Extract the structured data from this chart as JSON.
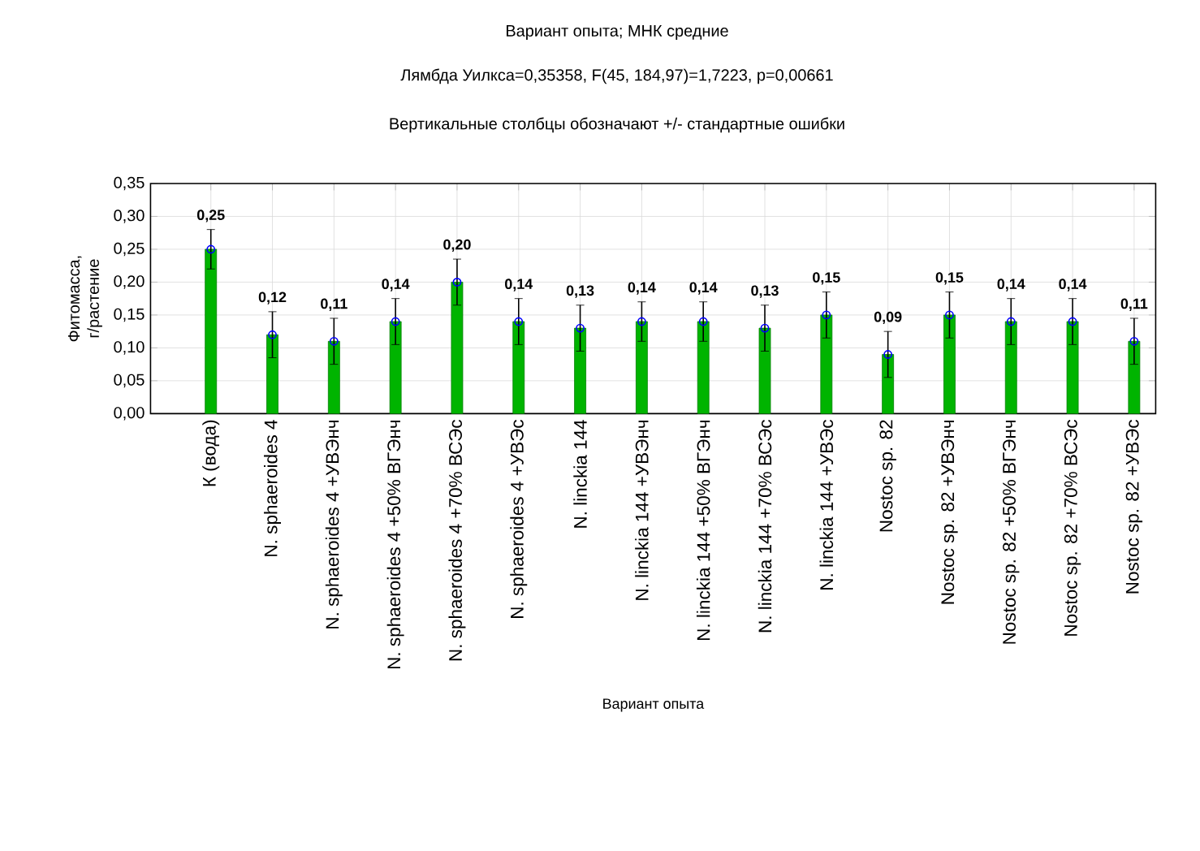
{
  "chart_data": {
    "type": "bar",
    "title": "Вариант опыта; МНК средние",
    "subtitle": "Лямбда Уилкса=0,35358, F(45, 184,97)=1,7223, p=0,00661",
    "annotations": [
      "Вертикальные столбцы обозначают +/- стандартные ошибки"
    ],
    "xlabel": "Вариант опыта",
    "ylabel": "Фитомасса, г/растение",
    "categories": [
      "К (вода)",
      "N. sphaeroides 4",
      "N. sphaeroides 4 +УВЭнч",
      "N. sphaeroides 4 +50% ВГЭнч",
      "N. sphaeroides 4 +70% ВСЭс",
      "N. sphaeroides 4 +УВЭс",
      "N. linckia 144",
      "N. linckia 144 +УВЭнч",
      "N. linckia 144 +50% ВГЭнч",
      "N. linckia 144 +70% ВСЭс",
      "N. linckia 144 +УВЭс",
      "Nostoc sp. 82",
      "Nostoc sp. 82 +УВЭнч",
      "Nostoc sp. 82 +50% ВГЭнч",
      "Nostoc sp. 82 +70% ВСЭс",
      "Nostoc sp. 82 +УВЭс"
    ],
    "series": [
      {
        "color": "#00b400",
        "values": [
          0.25,
          0.12,
          0.11,
          0.14,
          0.2,
          0.14,
          0.13,
          0.14,
          0.14,
          0.13,
          0.15,
          0.09,
          0.15,
          0.14,
          0.14,
          0.11
        ],
        "errors": [
          0.03,
          0.035,
          0.035,
          0.035,
          0.035,
          0.035,
          0.035,
          0.03,
          0.03,
          0.035,
          0.035,
          0.035,
          0.035,
          0.035,
          0.035,
          0.035
        ],
        "value_labels": [
          "0,25",
          "0,12",
          "0,11",
          "0,14",
          "0,20",
          "0,14",
          "0,13",
          "0,14",
          "0,14",
          "0,13",
          "0,15",
          "0,09",
          "0,15",
          "0,14",
          "0,14",
          "0,11"
        ]
      },
      {
        "type": "scatter",
        "color": "#0000ff",
        "marker": "circle",
        "x": [
          "К (вода)",
          "N. sphaeroides 4",
          "N. sphaeroides 4 +УВЭнч",
          "N. sphaeroides 4 +50% ВГЭнч",
          "N. sphaeroides 4 +70% ВСЭс",
          "N. sphaeroides 4 +УВЭс",
          "N. linckia 144",
          "N. linckia 144 +УВЭнч",
          "N. linckia 144 +50% ВГЭнч",
          "N. linckia 144 +70% ВСЭс",
          "N. linckia 144 +УВЭс",
          "Nostoc sp. 82",
          "Nostoc sp. 82 +УВЭнч",
          "Nostoc sp. 82 +50% ВГЭнч",
          "Nostoc sp. 82 +70% ВСЭс",
          "Nostoc sp. 82 +УВЭс"
        ],
        "values": [
          0.25,
          0.12,
          0.11,
          0.14,
          0.2,
          0.14,
          0.13,
          0.14,
          0.14,
          0.13,
          0.15,
          0.09,
          0.15,
          0.14,
          0.14,
          0.11
        ]
      }
    ],
    "ylim": [
      0,
      0.35
    ],
    "yticks": [
      {
        "value": 0,
        "label": "0,00"
      },
      {
        "value": 0.05,
        "label": "0,05"
      },
      {
        "value": 0.1,
        "label": "0,10"
      },
      {
        "value": 0.15,
        "label": "0,15"
      },
      {
        "value": 0.2,
        "label": "0,20"
      },
      {
        "value": 0.25,
        "label": "0,25"
      },
      {
        "value": 0.3,
        "label": "0,30"
      },
      {
        "value": 0.35,
        "label": "0,35"
      }
    ],
    "grid": true
  }
}
